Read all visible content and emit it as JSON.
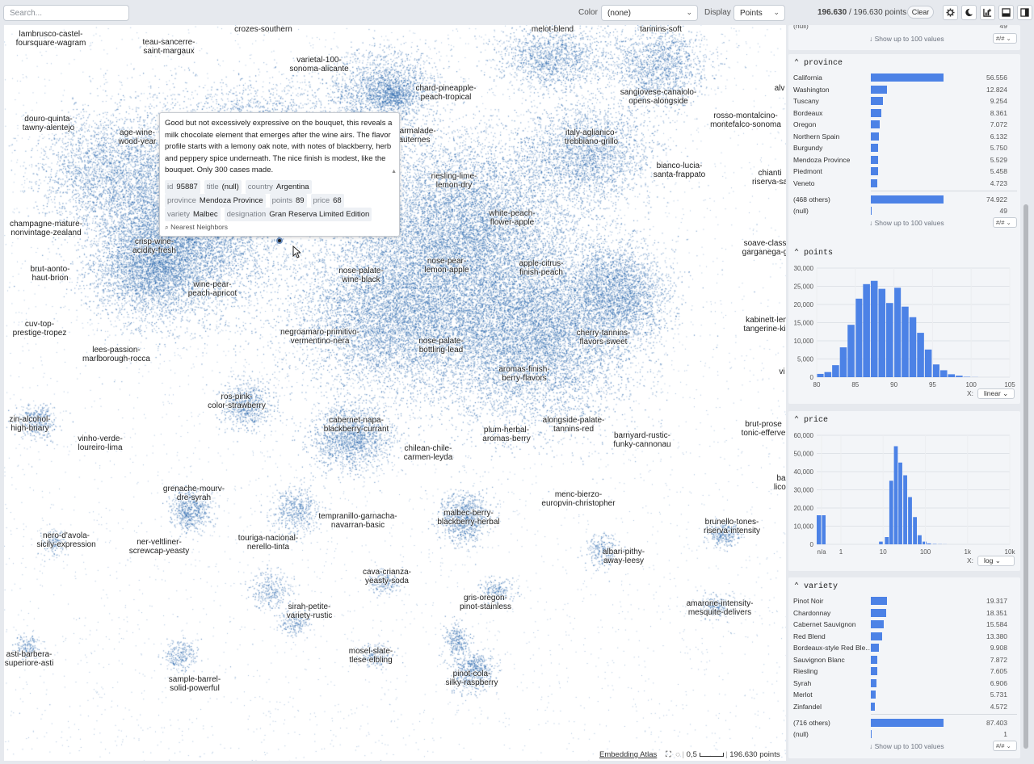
{
  "toolbar": {
    "search_placeholder": "Search...",
    "color_label": "Color",
    "color_value": "(none)",
    "display_label": "Display",
    "display_value": "Points",
    "count_selected": "196.630",
    "count_sep": "/",
    "count_total": "196.630 points",
    "clear_label": "Clear"
  },
  "map": {
    "labels": [
      {
        "t": "lambrusco-castel-\nfoursquare-wagram",
        "x": 58,
        "y": 6
      },
      {
        "t": "teau-sancerre-\nsaint-margaux",
        "x": 204,
        "y": 16
      },
      {
        "t": "crozes-southern",
        "x": 321,
        "y": 0
      },
      {
        "t": "melot-blend",
        "x": 679,
        "y": 0
      },
      {
        "t": "tannins-soft",
        "x": 813,
        "y": 0
      },
      {
        "t": "varietal-100-\nsonoma-alicante",
        "x": 390,
        "y": 38
      },
      {
        "t": "chard-pineapple-\npeach-tropical",
        "x": 547,
        "y": 73
      },
      {
        "t": "sangiovese-canaiolo-\nopens-alongside",
        "x": 810,
        "y": 78
      },
      {
        "t": "alv",
        "x": 960,
        "y": 73
      },
      {
        "t": "douro-quinta-\ntawny-alentejo",
        "x": 55,
        "y": 111
      },
      {
        "t": "rosso-montalcino-\nmontefalco-sonoma",
        "x": 918,
        "y": 107
      },
      {
        "t": "age-wine-\nwood-year",
        "x": 165,
        "y": 128
      },
      {
        "t": "marmalade-\nauternes",
        "x": 508,
        "y": 126
      },
      {
        "t": "italy-aglianico-\ntrebbiano-grillo",
        "x": 727,
        "y": 128
      },
      {
        "t": "bianco-lucia-\nsanta-frappato",
        "x": 836,
        "y": 169
      },
      {
        "t": "chianti\nriserva-sa",
        "x": 948,
        "y": 178
      },
      {
        "t": "riesling-lime-\nlemon-dry",
        "x": 557,
        "y": 182
      },
      {
        "t": "white-peach-\nflower-apple",
        "x": 629,
        "y": 228
      },
      {
        "t": "champagne-mature-\nnonvintage-zealand",
        "x": 52,
        "y": 241
      },
      {
        "t": "crisp-wine-\nacidity-fresh",
        "x": 186,
        "y": 263
      },
      {
        "t": "soave-class\ngarganega-g",
        "x": 942,
        "y": 265
      },
      {
        "t": "nose-pear-\nlemon-apple",
        "x": 548,
        "y": 287
      },
      {
        "t": "apple-citrus-\nfinish-peach",
        "x": 665,
        "y": 290
      },
      {
        "t": "brut-aonto-\nhaut-brion",
        "x": 57,
        "y": 297
      },
      {
        "t": "nose-palate-\nwine-black",
        "x": 442,
        "y": 299
      },
      {
        "t": "wine-pear-\npeach-apricot",
        "x": 258,
        "y": 316
      },
      {
        "t": "kabinett-len\ntangerine-kis",
        "x": 944,
        "y": 360
      },
      {
        "t": "cuv-top-\nprestige-tropez",
        "x": 44,
        "y": 365
      },
      {
        "t": "negroamaro-primitivo-\nvermentino-nera",
        "x": 391,
        "y": 375
      },
      {
        "t": "cherry-tannins-\nflavors-sweet",
        "x": 742,
        "y": 376
      },
      {
        "t": "lees-passion-\nmarlborough-rocca",
        "x": 139,
        "y": 397
      },
      {
        "t": "nose-palate-\nbottling-lead",
        "x": 541,
        "y": 386
      },
      {
        "t": "aromas-finish-\nberry-flavors",
        "x": 644,
        "y": 421
      },
      {
        "t": "vi",
        "x": 963,
        "y": 424
      },
      {
        "t": "ros-pink-\ncolor-strawberry",
        "x": 288,
        "y": 455
      },
      {
        "t": "zin-alcohol-\nhigh-briary",
        "x": 32,
        "y": 483
      },
      {
        "t": "cabernet-napa-\nblackberry-currant",
        "x": 436,
        "y": 484
      },
      {
        "t": "alongside-palate-\ntannins-red",
        "x": 705,
        "y": 484
      },
      {
        "t": "brut-prose\ntonic-efferve",
        "x": 940,
        "y": 489
      },
      {
        "t": "plum-herbal-\naromas-berry",
        "x": 622,
        "y": 496
      },
      {
        "t": "vinho-verde-\nloureiro-lima",
        "x": 119,
        "y": 507
      },
      {
        "t": "barnyard-rustic-\nfunky-cannonau",
        "x": 790,
        "y": 503
      },
      {
        "t": "chilean-chile-\ncarmen-leyda",
        "x": 525,
        "y": 519
      },
      {
        "t": "ba\nlicor",
        "x": 962,
        "y": 556
      },
      {
        "t": "grenache-mourv-\ndre-syrah",
        "x": 235,
        "y": 569
      },
      {
        "t": "menc-bierzo-\neuropvin-christopher",
        "x": 711,
        "y": 576
      },
      {
        "t": "tempranillo-garnacha-\nnavarran-basic",
        "x": 438,
        "y": 603
      },
      {
        "t": "malbec-berry-\nblackberry-herbal",
        "x": 575,
        "y": 599
      },
      {
        "t": "brunello-tones-\nriserva-intensity",
        "x": 901,
        "y": 610
      },
      {
        "t": "nero-d'avola-\nsicily-expression",
        "x": 77,
        "y": 627
      },
      {
        "t": "touriga-nacional-\nnerello-tinta",
        "x": 327,
        "y": 630
      },
      {
        "t": "ner-veltliner-\nscrewcap-yeasty",
        "x": 192,
        "y": 635
      },
      {
        "t": "albari-pithy-\naway-leesy",
        "x": 767,
        "y": 647
      },
      {
        "t": "cava-crianza-\nyeasty-soda",
        "x": 474,
        "y": 672
      },
      {
        "t": "gris-oregon-\npinot-stainless",
        "x": 596,
        "y": 704
      },
      {
        "t": "amarone-intensity-\nmesquite-delivers",
        "x": 886,
        "y": 711
      },
      {
        "t": "sirah-petite-\nvariety-rustic",
        "x": 378,
        "y": 715
      },
      {
        "t": "asti-barbera-\nsuperiore-asti",
        "x": 31,
        "y": 774
      },
      {
        "t": "mosel-slate-\ntlese-elbling",
        "x": 454,
        "y": 770
      },
      {
        "t": "pinot-cola-\nsilky-raspberry",
        "x": 579,
        "y": 798
      },
      {
        "t": "sample-barrel-\nsolid-powerful",
        "x": 236,
        "y": 805
      }
    ],
    "tooltip": {
      "description": "Good but not excessively expressive on the bouquet, this reveals a milk chocolate element that emerges after the wine airs. The flavor profile starts with a lemony oak note, with notes of blackberry, herb and peppery spice underneath. The nice finish is modest, like the bouquet. Only 300 cases made.",
      "rows": [
        [
          {
            "k": "id",
            "v": "95887"
          },
          {
            "k": "title",
            "v": "(null)"
          },
          {
            "k": "country",
            "v": "Argentina"
          }
        ],
        [
          {
            "k": "province",
            "v": "Mendoza Province"
          },
          {
            "k": "points",
            "v": "89"
          },
          {
            "k": "price",
            "v": "68"
          }
        ],
        [
          {
            "k": "variety",
            "v": "Malbec"
          },
          {
            "k": "designation",
            "v": "Gran Reserva Limited Edition"
          }
        ]
      ],
      "nearest_neighbors": "Nearest Neighbors"
    },
    "attribution": "Embedding Atlas",
    "scale_label": "0,5",
    "points_label": "196.630 points",
    "dot_color": "#1f5fa8"
  },
  "sidebar": {
    "top_null_value": "49",
    "top_show_more": "↓ Show up to 100 values",
    "top_hash": "#/#",
    "bar_color": "#4c82e6",
    "province": {
      "title": "province",
      "rows": [
        {
          "name": "California",
          "value": "56.556",
          "frac": 1.0
        },
        {
          "name": "Washington",
          "value": "12.824",
          "frac": 0.227
        },
        {
          "name": "Tuscany",
          "value": "9.254",
          "frac": 0.164
        },
        {
          "name": "Bordeaux",
          "value": "8.361",
          "frac": 0.148
        },
        {
          "name": "Oregon",
          "value": "7.072",
          "frac": 0.125
        },
        {
          "name": "Northern Spain",
          "value": "6.132",
          "frac": 0.108
        },
        {
          "name": "Burgundy",
          "value": "5.750",
          "frac": 0.102
        },
        {
          "name": "Mendoza Province",
          "value": "5.529",
          "frac": 0.098
        },
        {
          "name": "Piedmont",
          "value": "5.458",
          "frac": 0.097
        },
        {
          "name": "Veneto",
          "value": "4.723",
          "frac": 0.084
        }
      ],
      "others": {
        "name": "(468 others)",
        "value": "74.922",
        "frac": 1.0
      },
      "null": {
        "name": "(null)",
        "value": "49"
      },
      "show_more": "↓ Show up to 100 values",
      "hash": "#/#"
    },
    "points": {
      "title": "points",
      "scale_label": "X:",
      "scale_value": "linear"
    },
    "price": {
      "title": "price",
      "scale_label": "X:",
      "scale_value": "log"
    },
    "variety": {
      "title": "variety",
      "rows": [
        {
          "name": "Pinot Noir",
          "value": "19.317",
          "frac": 0.221
        },
        {
          "name": "Chardonnay",
          "value": "18.351",
          "frac": 0.21
        },
        {
          "name": "Cabernet Sauvignon",
          "value": "15.584",
          "frac": 0.178
        },
        {
          "name": "Red Blend",
          "value": "13.380",
          "frac": 0.153
        },
        {
          "name": "Bordeaux-style Red Ble...",
          "value": "9.908",
          "frac": 0.113
        },
        {
          "name": "Sauvignon Blanc",
          "value": "7.872",
          "frac": 0.09
        },
        {
          "name": "Riesling",
          "value": "7.605",
          "frac": 0.087
        },
        {
          "name": "Syrah",
          "value": "6.906",
          "frac": 0.079
        },
        {
          "name": "Merlot",
          "value": "5.731",
          "frac": 0.066
        },
        {
          "name": "Zinfandel",
          "value": "4.572",
          "frac": 0.052
        }
      ],
      "others": {
        "name": "(716 others)",
        "value": "87.403",
        "frac": 1.0
      },
      "null": {
        "name": "(null)",
        "value": "1"
      },
      "show_more": "↓ Show up to 100 values",
      "hash": "#/#"
    }
  },
  "chart_data": [
    {
      "type": "bar",
      "title": "points",
      "x": [
        80,
        81,
        82,
        83,
        84,
        85,
        86,
        87,
        88,
        89,
        90,
        91,
        92,
        93,
        94,
        95,
        96,
        97,
        98,
        99,
        100
      ],
      "values": [
        900,
        1400,
        3300,
        8200,
        14400,
        21600,
        25600,
        26500,
        24300,
        20400,
        24600,
        19400,
        16500,
        12200,
        7600,
        3500,
        1900,
        800,
        400,
        100,
        30
      ],
      "xticks": [
        80,
        85,
        90,
        95,
        100,
        105
      ],
      "yticks": [
        "0",
        "5,000",
        "10,000",
        "15,000",
        "20,000",
        "25,000",
        "30,000"
      ],
      "ylim": [
        0,
        30000
      ],
      "xscale": "linear"
    },
    {
      "type": "bar",
      "title": "price",
      "x": [
        "n/a",
        "6",
        "8",
        "11",
        "14",
        "18",
        "23",
        "30",
        "39",
        "51",
        "66",
        "86",
        "110",
        "150",
        "200",
        "260"
      ],
      "values": [
        16000,
        0,
        1500,
        4000,
        35000,
        54000,
        45000,
        38000,
        26000,
        15000,
        5000,
        1500,
        500,
        200,
        100,
        50
      ],
      "xticks": [
        "n/a",
        "1",
        "10",
        "100",
        "1k",
        "10k"
      ],
      "yticks": [
        "0",
        "10,000",
        "20,000",
        "30,000",
        "40,000",
        "50,000",
        "60,000"
      ],
      "ylim": [
        0,
        60000
      ],
      "xscale": "log"
    }
  ]
}
